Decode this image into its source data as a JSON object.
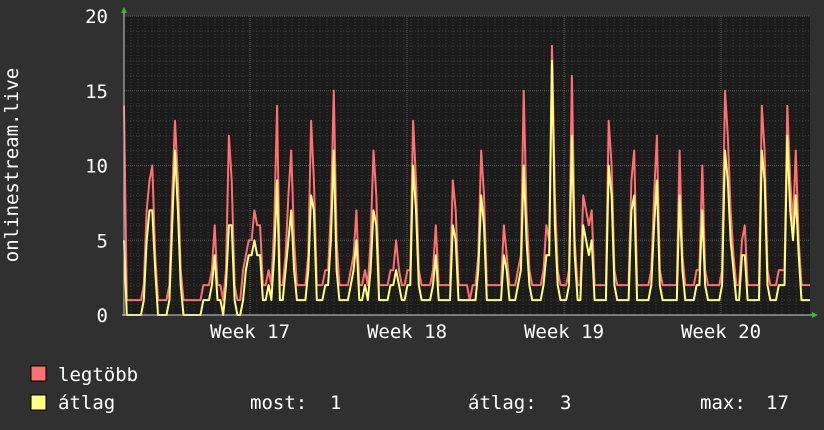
{
  "chart_data": {
    "type": "line",
    "title": "",
    "xlabel": "",
    "ylabel": "onlinestream.live",
    "ylim": [
      0,
      20
    ],
    "y_ticks": [
      0,
      5,
      10,
      15,
      20
    ],
    "x_ticks": [
      "Week 17",
      "Week 18",
      "Week 19",
      "Week 20"
    ],
    "grid": true,
    "legend_position": "bottom-left",
    "colors": {
      "background": "#303030",
      "plot_background": "#1c1c1c",
      "grid_major": "#5a5a5a",
      "grid_minor": "#3a3a3a",
      "axis_arrow": "#2fbf2f",
      "max_series": "#ff7070",
      "avg_series": "#ffff80"
    },
    "series": [
      {
        "name": "legtöbb",
        "color": "#ff7070",
        "values": [
          14,
          1,
          1,
          1,
          1,
          1,
          1,
          2,
          7,
          9,
          10,
          4,
          1,
          1,
          1,
          1,
          2,
          8,
          13,
          9,
          3,
          1,
          1,
          1,
          1,
          1,
          1,
          1,
          2,
          2,
          2,
          3,
          6,
          2,
          2,
          1,
          3,
          12,
          9,
          2,
          1,
          1,
          3,
          4,
          5,
          5,
          7,
          6,
          6,
          2,
          2,
          3,
          2,
          6,
          14,
          2,
          2,
          4,
          8,
          11,
          5,
          2,
          2,
          2,
          2,
          4,
          13,
          9,
          2,
          2,
          2,
          3,
          3,
          7,
          15,
          5,
          2,
          2,
          2,
          2,
          3,
          4,
          7,
          2,
          2,
          3,
          2,
          5,
          11,
          8,
          2,
          2,
          2,
          2,
          3,
          3,
          5,
          3,
          2,
          2,
          3,
          3,
          13,
          9,
          3,
          2,
          2,
          2,
          2,
          3,
          6,
          2,
          2,
          2,
          2,
          2,
          9,
          7,
          2,
          2,
          2,
          2,
          1,
          2,
          2,
          4,
          11,
          8,
          2,
          2,
          2,
          2,
          2,
          2,
          6,
          4,
          2,
          2,
          2,
          3,
          4,
          15,
          7,
          3,
          2,
          2,
          2,
          2,
          3,
          6,
          5,
          18,
          8,
          3,
          2,
          2,
          2,
          3,
          16,
          5,
          2,
          2,
          8,
          7,
          6,
          7,
          2,
          2,
          2,
          2,
          2,
          13,
          10,
          3,
          2,
          2,
          2,
          2,
          2,
          9,
          11,
          2,
          2,
          2,
          2,
          2,
          3,
          8,
          12,
          3,
          2,
          2,
          2,
          2,
          2,
          2,
          11,
          4,
          2,
          2,
          2,
          2,
          3,
          3,
          10,
          3,
          2,
          2,
          2,
          2,
          2,
          3,
          15,
          12,
          7,
          4,
          2,
          2,
          5,
          6,
          2,
          2,
          2,
          2,
          2,
          14,
          11,
          3,
          2,
          2,
          2,
          3,
          3,
          3,
          14,
          9,
          6,
          11,
          5,
          2,
          2,
          2,
          2
        ]
      },
      {
        "name": "átlag",
        "color": "#ffff80",
        "values": [
          5,
          0,
          0,
          0,
          0,
          0,
          0,
          1,
          5,
          7,
          7,
          3,
          0,
          0,
          0,
          0,
          1,
          6,
          11,
          7,
          2,
          0,
          0,
          0,
          0,
          0,
          0,
          0,
          1,
          1,
          1,
          2,
          4,
          1,
          1,
          0,
          2,
          6,
          6,
          1,
          0,
          0,
          1,
          3,
          4,
          4,
          5,
          4,
          4,
          1,
          1,
          2,
          1,
          4,
          9,
          1,
          1,
          3,
          5,
          7,
          3,
          1,
          1,
          1,
          1,
          3,
          8,
          7,
          1,
          1,
          1,
          2,
          2,
          5,
          11,
          3,
          1,
          1,
          1,
          1,
          2,
          3,
          5,
          1,
          1,
          2,
          1,
          3,
          7,
          6,
          1,
          1,
          1,
          1,
          2,
          2,
          3,
          2,
          1,
          1,
          2,
          2,
          10,
          7,
          2,
          1,
          1,
          1,
          1,
          2,
          4,
          1,
          1,
          1,
          1,
          1,
          6,
          5,
          1,
          1,
          1,
          1,
          1,
          1,
          1,
          3,
          8,
          6,
          1,
          1,
          1,
          1,
          1,
          1,
          4,
          3,
          1,
          1,
          1,
          2,
          3,
          10,
          5,
          2,
          1,
          1,
          1,
          1,
          2,
          4,
          4,
          17,
          6,
          2,
          1,
          1,
          1,
          2,
          12,
          4,
          1,
          1,
          6,
          5,
          4,
          5,
          1,
          1,
          1,
          1,
          1,
          10,
          8,
          2,
          1,
          1,
          1,
          1,
          1,
          7,
          8,
          1,
          1,
          1,
          1,
          1,
          2,
          6,
          9,
          2,
          1,
          1,
          1,
          1,
          1,
          1,
          8,
          3,
          1,
          1,
          1,
          1,
          2,
          2,
          7,
          2,
          1,
          1,
          1,
          1,
          1,
          2,
          11,
          9,
          5,
          3,
          1,
          1,
          4,
          4,
          1,
          1,
          1,
          1,
          1,
          11,
          9,
          2,
          1,
          1,
          1,
          2,
          2,
          2,
          12,
          7,
          5,
          8,
          4,
          1,
          1,
          1,
          1
        ]
      }
    ]
  },
  "legend": {
    "items": [
      {
        "label": "legtöbb",
        "color": "#ff7070"
      },
      {
        "label": "átlag",
        "color": "#ffff80"
      }
    ]
  },
  "stats": {
    "now_label": "most:",
    "now_value": "1",
    "avg_label": "átlag:",
    "avg_value": "3",
    "max_label": "max:",
    "max_value": "17"
  }
}
